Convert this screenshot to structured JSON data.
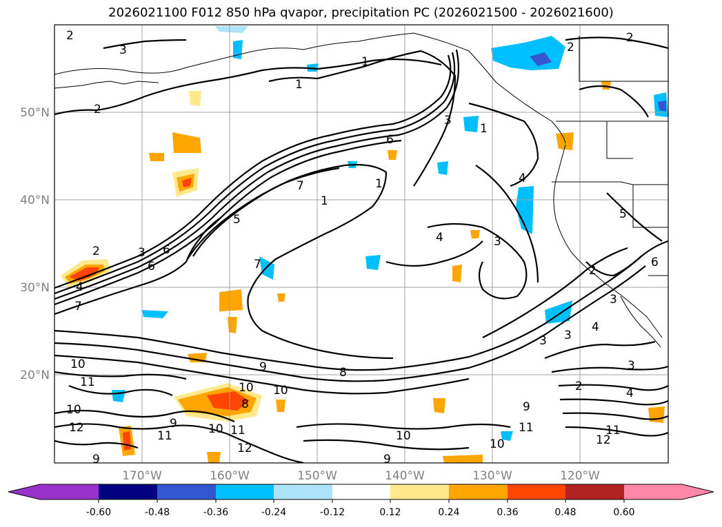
{
  "title": "2026021100 F012 850 hPa qvapor, precipitation PC (2026021500 - 2026021600)",
  "map": {
    "lon_labels": [
      "170°W",
      "160°W",
      "150°W",
      "140°W",
      "130°W",
      "120°W"
    ],
    "lat_labels": [
      "50°N",
      "40°N",
      "30°N",
      "20°N"
    ],
    "contour_labels": [
      "2",
      "3",
      "1",
      "2",
      "2",
      "1",
      "3",
      "6",
      "1",
      "1",
      "4",
      "3",
      "7",
      "6",
      "5",
      "3",
      "2",
      "6",
      "7",
      "4",
      "7",
      "10",
      "11",
      "9",
      "10",
      "8",
      "10",
      "9",
      "11",
      "10",
      "12",
      "11",
      "12",
      "10",
      "9",
      "9",
      "8",
      "10",
      "11",
      "9",
      "12",
      "11",
      "10",
      "3",
      "3",
      "4",
      "3",
      "2",
      "4",
      "2",
      "3",
      "5",
      "2",
      "6",
      "1",
      "4"
    ]
  },
  "colorbar": {
    "tick_labels": [
      "-0.60",
      "-0.48",
      "-0.36",
      "-0.24",
      "-0.12",
      "0.12",
      "0.24",
      "0.36",
      "0.48",
      "0.60"
    ],
    "colors": [
      "#9932cc",
      "#000080",
      "#3456d0",
      "#00bfff",
      "#aee4fa",
      "#ffffff",
      "#ffe98c",
      "#ffa500",
      "#ff4500",
      "#b22222",
      "#ff88aa"
    ]
  }
}
